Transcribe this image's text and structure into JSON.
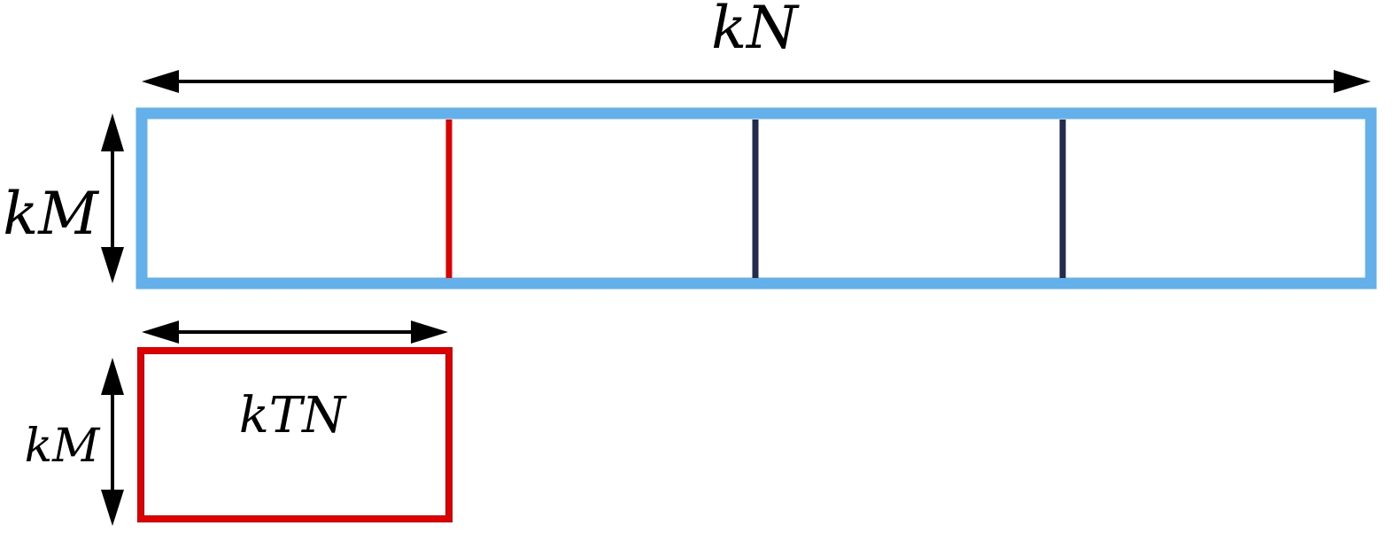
{
  "labels": {
    "top_width": "kN",
    "left_height_top": "kM",
    "left_height_bottom": "kM",
    "tile_label": "kTN"
  },
  "colors": {
    "outer_box": "#64B0EA",
    "tile_box": "#DD0000",
    "divider": "#232B4E",
    "arrow": "#000000"
  }
}
